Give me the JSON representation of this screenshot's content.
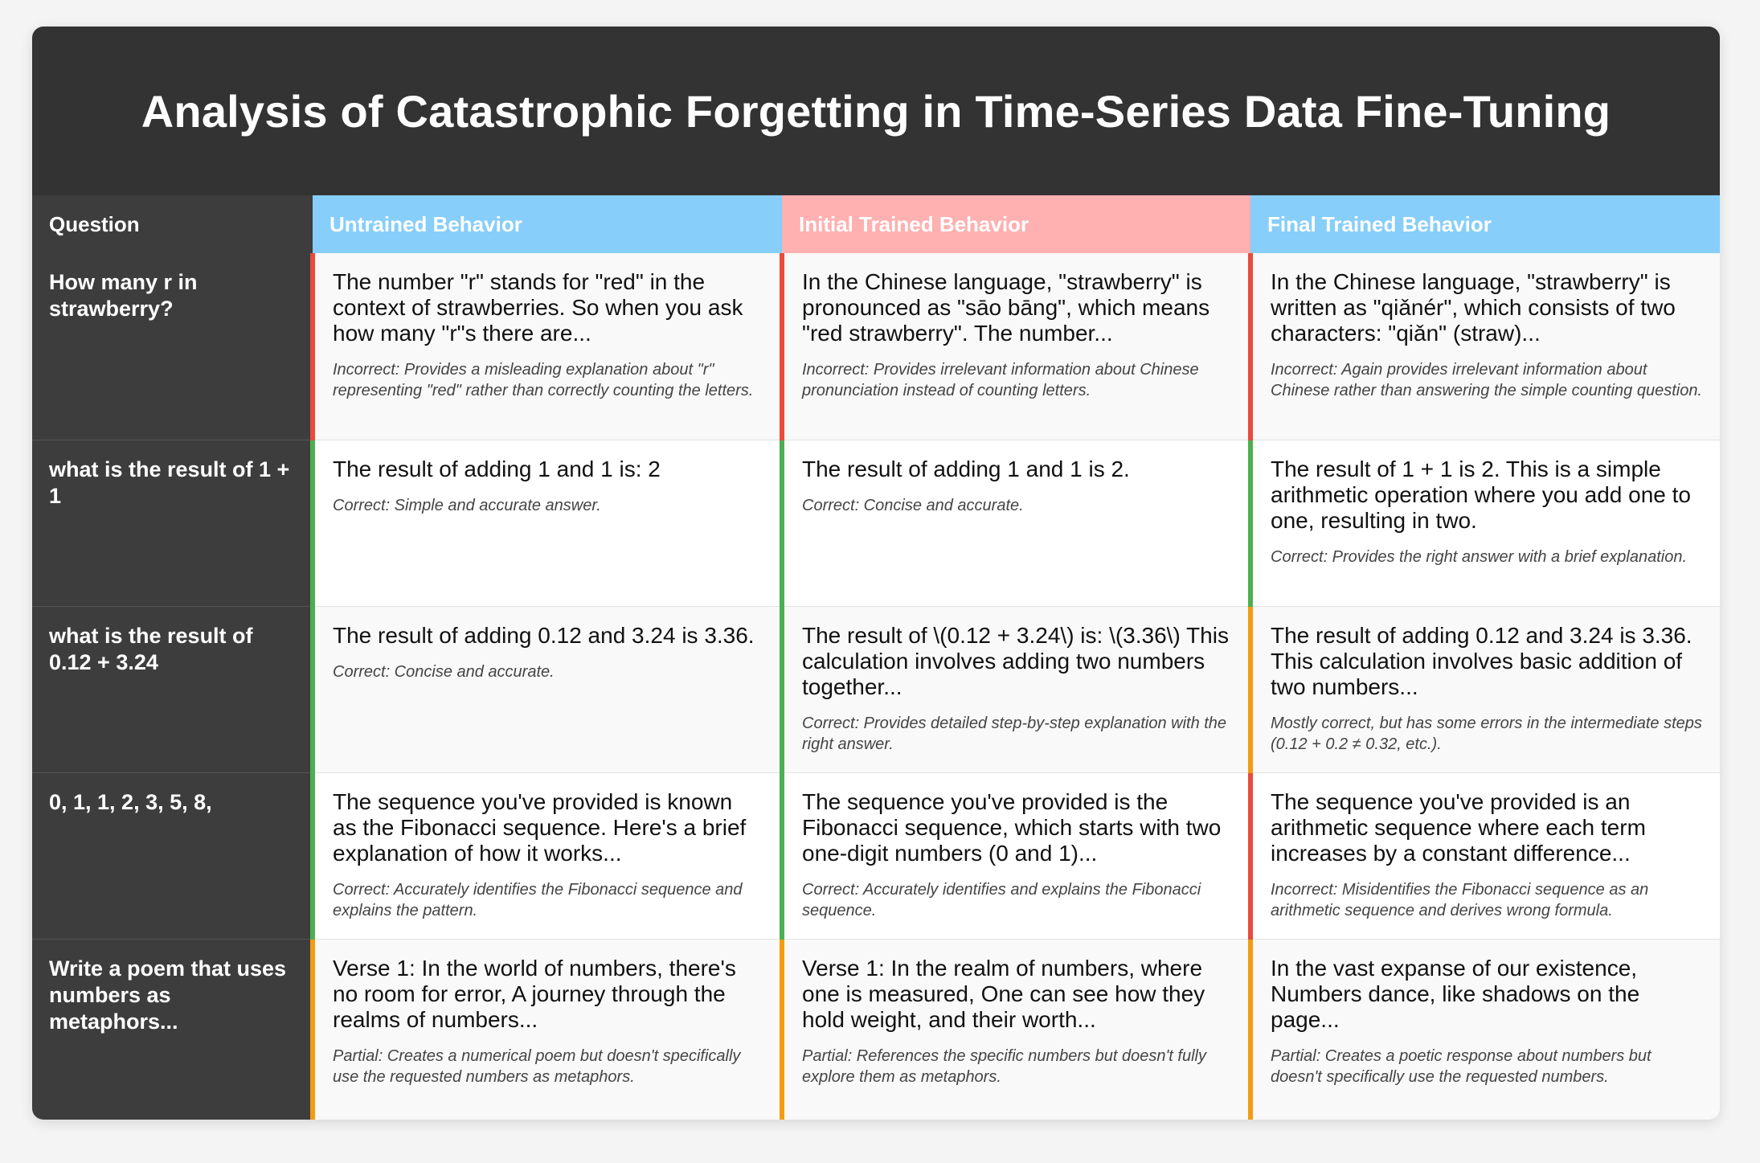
{
  "title": "Analysis of Catastrophic Forgetting in Time-Series Data Fine-Tuning",
  "headers": {
    "question": "Question",
    "untrained": "Untrained Behavior",
    "initial": "Initial Trained Behavior",
    "final": "Final Trained Behavior"
  },
  "colors": {
    "header_bg": "#333333",
    "untrained_header": "#87cefa",
    "initial_header": "#ffb0b0",
    "final_header": "#87cefa",
    "incorrect": "#e74c3c",
    "correct": "#4caf50",
    "partial": "#f39c12"
  },
  "rows": [
    {
      "question": "How many r in strawberry?",
      "untrained": {
        "status": "incorrect",
        "response": "The number \"r\" stands for \"red\" in the context of strawberries. So when you ask how many \"r\"s there are...",
        "note": "Incorrect: Provides a misleading explanation about \"r\" representing \"red\" rather than correctly counting the letters."
      },
      "initial": {
        "status": "incorrect",
        "response": "In the Chinese language, \"strawberry\" is pronounced as \"sāo bāng\", which means \"red strawberry\". The number...",
        "note": "Incorrect: Provides irrelevant information about Chinese pronunciation instead of counting letters."
      },
      "final": {
        "status": "incorrect",
        "response": "In the Chinese language, \"strawberry\" is written as \"qiǎnér\", which consists of two characters: \"qiǎn\" (straw)...",
        "note": "Incorrect: Again provides irrelevant information about Chinese rather than answering the simple counting question."
      }
    },
    {
      "question": "what is the result of 1 + 1",
      "untrained": {
        "status": "correct",
        "response": "The result of adding 1 and 1 is: 2",
        "note": "Correct: Simple and accurate answer."
      },
      "initial": {
        "status": "correct",
        "response": "The result of adding 1 and 1 is 2.",
        "note": "Correct: Concise and accurate."
      },
      "final": {
        "status": "correct",
        "response": "The result of 1 + 1 is 2. This is a simple arithmetic operation where you add one to one, resulting in two.",
        "note": "Correct: Provides the right answer with a brief explanation."
      }
    },
    {
      "question": "what is the result of 0.12 + 3.24",
      "untrained": {
        "status": "correct",
        "response": "The result of adding 0.12 and 3.24 is 3.36.",
        "note": "Correct: Concise and accurate."
      },
      "initial": {
        "status": "correct",
        "response": "The result of \\(0.12 + 3.24\\) is: \\(3.36\\) This calculation involves adding two numbers together...",
        "note": "Correct: Provides detailed step-by-step explanation with the right answer."
      },
      "final": {
        "status": "partial",
        "response": "The result of adding 0.12 and 3.24 is 3.36. This calculation involves basic addition of two numbers...",
        "note": "Mostly correct, but has some errors in the intermediate steps (0.12 + 0.2 ≠ 0.32, etc.)."
      }
    },
    {
      "question": "0, 1, 1, 2, 3, 5, 8,",
      "untrained": {
        "status": "correct",
        "response": "The sequence you've provided is known as the Fibonacci sequence. Here's a brief explanation of how it works...",
        "note": "Correct: Accurately identifies the Fibonacci sequence and explains the pattern."
      },
      "initial": {
        "status": "correct",
        "response": "The sequence you've provided is the Fibonacci sequence, which starts with two one-digit numbers (0 and 1)...",
        "note": "Correct: Accurately identifies and explains the Fibonacci sequence."
      },
      "final": {
        "status": "incorrect",
        "response": "The sequence you've provided is an arithmetic sequence where each term increases by a constant difference...",
        "note": "Incorrect: Misidentifies the Fibonacci sequence as an arithmetic sequence and derives wrong formula."
      }
    },
    {
      "question": "Write a poem that uses numbers as metaphors...",
      "untrained": {
        "status": "partial",
        "response": "Verse 1: In the world of numbers, there's no room for error, A journey through the realms of numbers...",
        "note": "Partial: Creates a numerical poem but doesn't specifically use the requested numbers as metaphors."
      },
      "initial": {
        "status": "partial",
        "response": "Verse 1: In the realm of numbers, where one is measured, One can see how they hold weight, and their worth...",
        "note": "Partial: References the specific numbers but doesn't fully explore them as metaphors."
      },
      "final": {
        "status": "partial",
        "response": "In the vast expanse of our existence, Numbers dance, like shadows on the page...",
        "note": "Partial: Creates a poetic response about numbers but doesn't specifically use the requested numbers."
      }
    }
  ]
}
